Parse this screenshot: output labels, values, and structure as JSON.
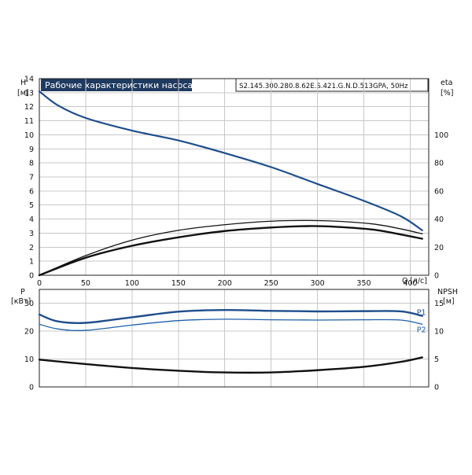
{
  "chart_data": [
    {
      "type": "line",
      "title": "Рабочие характеристики насоса",
      "subtitle": "S2.145.300.280.8.62E.S.421.G.N.D.513GPA, 50Hz",
      "y_label": "H",
      "y_unit": "[м]",
      "y2_label": "eta",
      "y2_unit": "[%]",
      "x_label": "Q",
      "x_unit": "[л/с]",
      "xlim": [
        0,
        420
      ],
      "ylim": [
        0,
        14
      ],
      "y2lim": [
        0,
        140
      ],
      "x_ticks": [
        "0",
        "50",
        "100",
        "150",
        "200",
        "250",
        "300",
        "350",
        "400"
      ],
      "y_ticks": [
        "0",
        "1",
        "2",
        "3",
        "4",
        "5",
        "6",
        "7",
        "8",
        "9",
        "10",
        "11",
        "12",
        "13",
        "14"
      ],
      "y2_ticks": [
        "0",
        "20",
        "40",
        "60",
        "80",
        "100"
      ],
      "grid": true,
      "series": [
        {
          "axis": "left",
          "color": "#1f4e8c",
          "points": [
            [
              0,
              13.1
            ],
            [
              20,
              12.1
            ],
            [
              50,
              11.2
            ],
            [
              100,
              10.3
            ],
            [
              150,
              9.6
            ],
            [
              200,
              8.7
            ],
            [
              250,
              7.7
            ],
            [
              300,
              6.5
            ],
            [
              350,
              5.3
            ],
            [
              390,
              4.2
            ],
            [
              413,
              3.2
            ]
          ]
        },
        {
          "axis": "right",
          "color": "#111111",
          "points": [
            [
              0,
              0
            ],
            [
              50,
              14
            ],
            [
              100,
              25
            ],
            [
              150,
              32
            ],
            [
              200,
              36
            ],
            [
              250,
              38.5
            ],
            [
              290,
              39
            ],
            [
              320,
              38.5
            ],
            [
              360,
              36.5
            ],
            [
              390,
              33
            ],
            [
              413,
              29.5
            ]
          ]
        },
        {
          "axis": "right",
          "color": "#111111",
          "points": [
            [
              0,
              0
            ],
            [
              50,
              12.5
            ],
            [
              100,
              21
            ],
            [
              150,
              27
            ],
            [
              200,
              31.5
            ],
            [
              250,
              34
            ],
            [
              290,
              35
            ],
            [
              320,
              34.5
            ],
            [
              360,
              32.5
            ],
            [
              390,
              29
            ],
            [
              413,
              26
            ]
          ]
        }
      ]
    },
    {
      "type": "line",
      "y_label": "P",
      "y_unit": "[кВт]",
      "y2_label": "NPSH",
      "y2_unit": "[м]",
      "xlim": [
        0,
        420
      ],
      "ylim": [
        0,
        35
      ],
      "y2lim": [
        0,
        17.5
      ],
      "y_ticks": [
        "0",
        "10",
        "20",
        "30"
      ],
      "y2_ticks": [
        "0",
        "5",
        "10",
        "15"
      ],
      "grid": true,
      "series": [
        {
          "name": "P1",
          "axis": "left",
          "color": "#1f4e8c",
          "points": [
            [
              0,
              26
            ],
            [
              20,
              23.5
            ],
            [
              50,
              23
            ],
            [
              100,
              25
            ],
            [
              150,
              27
            ],
            [
              200,
              27.6
            ],
            [
              250,
              27.3
            ],
            [
              300,
              27.1
            ],
            [
              350,
              27.2
            ],
            [
              390,
              27.1
            ],
            [
              413,
              25.5
            ]
          ]
        },
        {
          "name": "P2",
          "axis": "left",
          "color": "#1f5fa8",
          "points": [
            [
              0,
              22.5
            ],
            [
              20,
              20.8
            ],
            [
              50,
              20.3
            ],
            [
              100,
              22.2
            ],
            [
              150,
              23.8
            ],
            [
              200,
              24.3
            ],
            [
              250,
              24.1
            ],
            [
              300,
              24
            ],
            [
              350,
              24.1
            ],
            [
              390,
              24
            ],
            [
              413,
              22.5
            ]
          ]
        },
        {
          "axis": "right",
          "color": "#111111",
          "points": [
            [
              0,
              4.9
            ],
            [
              50,
              4.1
            ],
            [
              100,
              3.4
            ],
            [
              150,
              2.9
            ],
            [
              200,
              2.6
            ],
            [
              250,
              2.6
            ],
            [
              300,
              3
            ],
            [
              350,
              3.6
            ],
            [
              390,
              4.5
            ],
            [
              413,
              5.3
            ]
          ]
        }
      ]
    }
  ]
}
